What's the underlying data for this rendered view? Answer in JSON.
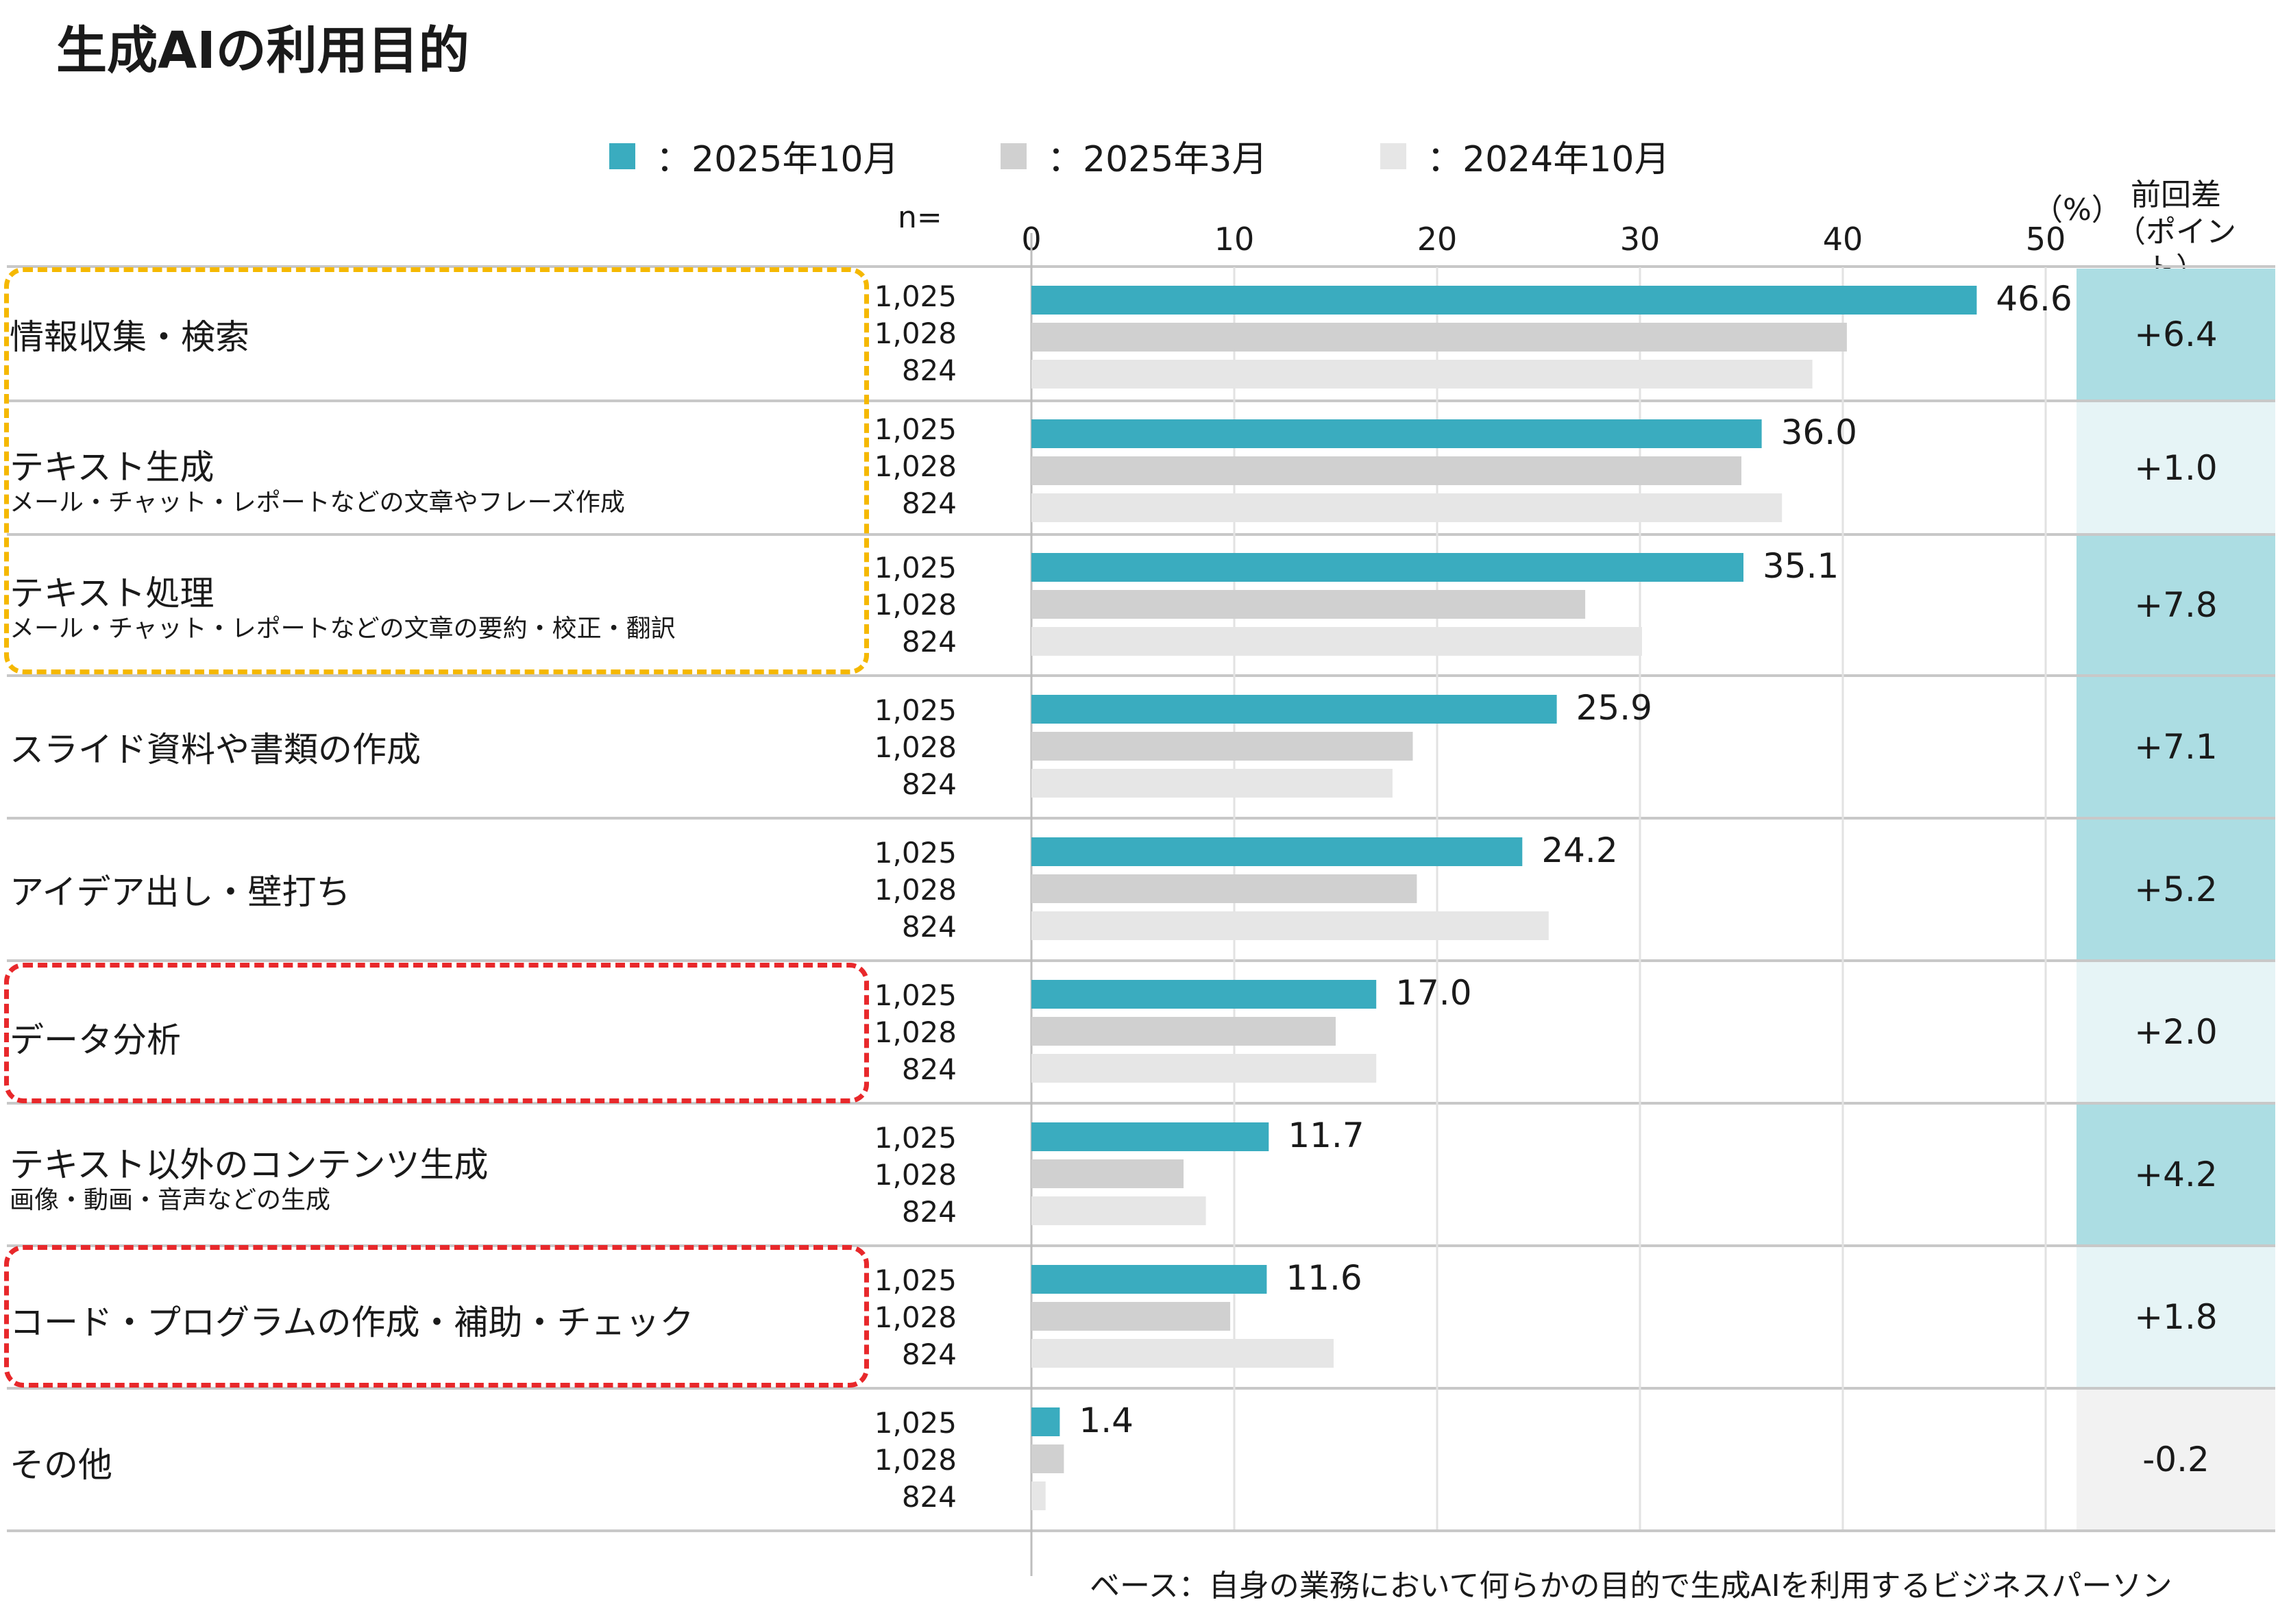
{
  "title": "生成AIの利用目的",
  "legend": [
    {
      "label": "：2025年10月",
      "color": "#3aacbf"
    },
    {
      "label": "：2025年3月",
      "color": "#d0d0d0"
    },
    {
      "label": "：2024年10月",
      "color": "#e6e6e6"
    }
  ],
  "n_header": "n=",
  "unit_label": "（%）",
  "diff_header": {
    "line1": "前回差",
    "line2": "（ポイント）"
  },
  "footnote": "ベース：自身の業務において何らかの目的で生成AIを利用するビジネスパーソン",
  "colors": {
    "accent": "#3aacbf",
    "mid_gray": "#d0d0d0",
    "light_gray": "#e6e6e6",
    "diff_dark": "#acdde3",
    "diff_light": "#e6f4f6",
    "diff_neg": "#f2f2f2"
  },
  "rows": [
    {
      "label": "情報収集・検索",
      "sub": "",
      "n": [
        "1,025",
        "1,028",
        "824"
      ],
      "diff": "+6.4",
      "value_label": "46.6"
    },
    {
      "label": "テキスト生成",
      "sub": "メール・チャット・レポートなどの文章やフレーズ作成",
      "n": [
        "1,025",
        "1,028",
        "824"
      ],
      "diff": "+1.0",
      "value_label": "36.0"
    },
    {
      "label": "テキスト処理",
      "sub": "メール・チャット・レポートなどの文章の要約・校正・翻訳",
      "n": [
        "1,025",
        "1,028",
        "824"
      ],
      "diff": "+7.8",
      "value_label": "35.1"
    },
    {
      "label": "スライド資料や書類の作成",
      "sub": "",
      "n": [
        "1,025",
        "1,028",
        "824"
      ],
      "diff": "+7.1",
      "value_label": "25.9"
    },
    {
      "label": "アイデア出し・壁打ち",
      "sub": "",
      "n": [
        "1,025",
        "1,028",
        "824"
      ],
      "diff": "+5.2",
      "value_label": "24.2"
    },
    {
      "label": "データ分析",
      "sub": "",
      "n": [
        "1,025",
        "1,028",
        "824"
      ],
      "diff": "+2.0",
      "value_label": "17.0"
    },
    {
      "label": "テキスト以外のコンテンツ生成",
      "sub": "画像・動画・音声などの生成",
      "n": [
        "1,025",
        "1,028",
        "824"
      ],
      "diff": "+4.2",
      "value_label": "11.7"
    },
    {
      "label": "コード・プログラムの作成・補助・チェック",
      "sub": "",
      "n": [
        "1,025",
        "1,028",
        "824"
      ],
      "diff": "+1.8",
      "value_label": "11.6"
    },
    {
      "label": "その他",
      "sub": "",
      "n": [
        "1,025",
        "1,028",
        "824"
      ],
      "diff": "-0.2",
      "value_label": "1.4"
    }
  ],
  "chart_data": {
    "type": "bar",
    "orientation": "horizontal",
    "title": "生成AIの利用目的",
    "xlabel": "（%）",
    "xlim": [
      0,
      50
    ],
    "xticks": [
      0,
      10,
      20,
      30,
      40,
      50
    ],
    "tick_labels": [
      "0",
      "10",
      "20",
      "30",
      "40",
      "50"
    ],
    "categories": [
      "情報収集・検索",
      "テキスト生成",
      "テキスト処理",
      "スライド資料や書類の作成",
      "アイデア出し・壁打ち",
      "データ分析",
      "テキスト以外のコンテンツ生成",
      "コード・プログラムの作成・補助・チェック",
      "その他"
    ],
    "series": [
      {
        "name": "2025年10月",
        "color": "#3aacbf",
        "values": [
          46.6,
          36.0,
          35.1,
          25.9,
          24.2,
          17.0,
          11.7,
          11.6,
          1.4
        ]
      },
      {
        "name": "2025年3月",
        "color": "#d0d0d0",
        "values": [
          40.2,
          35.0,
          27.3,
          18.8,
          19.0,
          15.0,
          7.5,
          9.8,
          1.6
        ]
      },
      {
        "name": "2024年10月",
        "color": "#e6e6e6",
        "values": [
          38.5,
          37.0,
          30.1,
          17.8,
          25.5,
          17.0,
          8.6,
          14.9,
          0.7
        ]
      }
    ],
    "grid": true,
    "legend_position": "top"
  }
}
